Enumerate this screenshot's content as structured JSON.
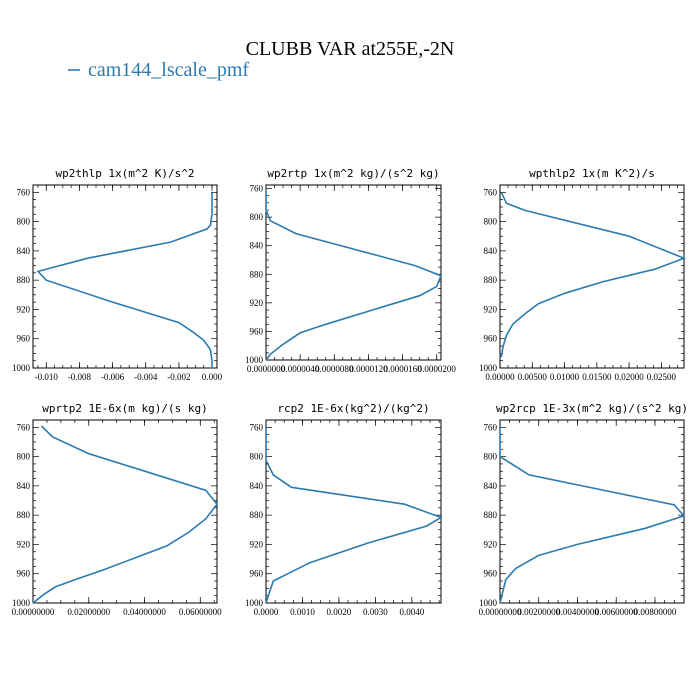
{
  "figure": {
    "title": "CLUBB VAR at255E,-2N",
    "legend_label": "cam144_lscale_pmf",
    "line_color": "#2c7bb0"
  },
  "chart_data": [
    {
      "type": "line",
      "title": "wp2thlp  1x(m^2 K)/s^2",
      "xlim": [
        -0.0108,
        0.0003
      ],
      "xticks": [
        "-0.010",
        "-0.008",
        "-0.006",
        "-0.004",
        "-0.002",
        "0.000"
      ],
      "xtick_values": [
        -0.01,
        -0.008,
        -0.006,
        -0.004,
        -0.002,
        0.0
      ],
      "ylim": [
        1000,
        750
      ],
      "yticks": [
        "760",
        "800",
        "840",
        "880",
        "920",
        "960",
        "1000"
      ],
      "ytick_values": [
        760,
        800,
        840,
        880,
        920,
        960,
        1000
      ],
      "x": [
        0.0,
        0.0,
        -0.0001,
        -0.0003,
        -0.0025,
        -0.0075,
        -0.0105,
        -0.01,
        -0.006,
        -0.002,
        -0.0012,
        -0.0005,
        -0.0001,
        0.0,
        0.0
      ],
      "y": [
        760,
        790,
        805,
        810,
        828,
        850,
        868,
        880,
        910,
        938,
        950,
        962,
        975,
        990,
        1000
      ]
    },
    {
      "type": "line",
      "title": "wp2rtp  1x(m^2 kg)/(s^2 kg)",
      "xlim": [
        0,
        2.05e-05
      ],
      "xticks": [
        "0.0000000",
        "0.0000040",
        "0.0000080",
        "0.0000120",
        "0.0000160",
        "0.0000200"
      ],
      "xtick_values": [
        0,
        4e-06,
        8e-06,
        1.2e-05,
        1.6e-05,
        2e-05
      ],
      "ylim": [
        1000,
        755
      ],
      "yticks": [
        "760",
        "800",
        "840",
        "880",
        "920",
        "960",
        "1000"
      ],
      "ytick_values": [
        760,
        800,
        840,
        880,
        920,
        960,
        1000
      ],
      "x": [
        0,
        0,
        5e-07,
        3.5e-06,
        1.75e-05,
        2.05e-05,
        2e-05,
        1.8e-05,
        1.3e-05,
        7e-06,
        4e-06,
        2e-06,
        5e-07,
        0
      ],
      "y": [
        760,
        790,
        805,
        823,
        868,
        882,
        897,
        910,
        928,
        950,
        962,
        978,
        992,
        1000
      ]
    },
    {
      "type": "line",
      "title": "wpthlp2  1x(m K^2)/s",
      "xlim": [
        0,
        0.0285
      ],
      "xticks": [
        "0.00000",
        "0.00500",
        "0.01000",
        "0.01500",
        "0.02000",
        "0.02500"
      ],
      "xtick_values": [
        0,
        0.005,
        0.01,
        0.015,
        0.02,
        0.025
      ],
      "ylim": [
        1000,
        750
      ],
      "yticks": [
        "760",
        "800",
        "840",
        "880",
        "920",
        "960",
        "1000"
      ],
      "ytick_values": [
        760,
        800,
        840,
        880,
        920,
        960,
        1000
      ],
      "x": [
        0.0002,
        0.001,
        0.004,
        0.02,
        0.0285,
        0.024,
        0.016,
        0.01,
        0.006,
        0.004,
        0.002,
        0.001,
        0.0005,
        0.0002
      ],
      "y": [
        760,
        775,
        785,
        820,
        850,
        865,
        882,
        898,
        912,
        925,
        940,
        955,
        970,
        985
      ]
    },
    {
      "type": "line",
      "title": "wprtp2  1E-6x(m kg)/(s kg)",
      "xlim": [
        0,
        0.066
      ],
      "xticks": [
        "0.00000000",
        "0.02000000",
        "0.04000000",
        "0.06000000"
      ],
      "xtick_values": [
        0,
        0.02,
        0.04,
        0.06
      ],
      "ylim": [
        1000,
        750
      ],
      "yticks": [
        "760",
        "800",
        "840",
        "880",
        "920",
        "960",
        "1000"
      ],
      "ytick_values": [
        760,
        800,
        840,
        880,
        920,
        960,
        1000
      ],
      "x": [
        0.003,
        0.007,
        0.02,
        0.062,
        0.066,
        0.062,
        0.056,
        0.048,
        0.039,
        0.025,
        0.016,
        0.008,
        0.004,
        0.001,
        0.0
      ],
      "y": [
        758,
        773,
        796,
        846,
        865,
        885,
        903,
        922,
        935,
        955,
        967,
        978,
        988,
        997,
        1000
      ]
    },
    {
      "type": "line",
      "title": "rcp2  1E-6x(kg^2)/(kg^2)",
      "xlim": [
        0,
        0.0048
      ],
      "xticks": [
        "0.0000",
        "0.0010",
        "0.0020",
        "0.0030",
        "0.0040"
      ],
      "xtick_values": [
        0,
        0.001,
        0.002,
        0.003,
        0.004
      ],
      "ylim": [
        1000,
        750
      ],
      "yticks": [
        "760",
        "800",
        "840",
        "880",
        "920",
        "960",
        "1000"
      ],
      "ytick_values": [
        760,
        800,
        840,
        880,
        920,
        960,
        1000
      ],
      "x": [
        0,
        0,
        0.0002,
        0.0007,
        0.0038,
        0.0048,
        0.0044,
        0.0028,
        0.0012,
        0.0006,
        0.0002,
        0.0001,
        0
      ],
      "y": [
        760,
        805,
        825,
        842,
        865,
        883,
        895,
        918,
        945,
        960,
        970,
        985,
        1000
      ]
    },
    {
      "type": "line",
      "title": "wp2rcp  1E-3x(m^2 kg)/(s^2 kg)",
      "xlim": [
        0,
        0.0095
      ],
      "xticks": [
        "0.00000000",
        "0.00200000",
        "0.00400000",
        "0.00600000",
        "0.00800000"
      ],
      "xtick_values": [
        0,
        0.002,
        0.004,
        0.006,
        0.008
      ],
      "ylim": [
        1000,
        750
      ],
      "yticks": [
        "760",
        "800",
        "840",
        "880",
        "920",
        "960",
        "1000"
      ],
      "ytick_values": [
        760,
        800,
        840,
        880,
        920,
        960,
        1000
      ],
      "x": [
        0,
        0,
        0.0015,
        0.009,
        0.0095,
        0.0075,
        0.004,
        0.002,
        0.0008,
        0.0003,
        0
      ],
      "y": [
        760,
        800,
        825,
        866,
        881,
        898,
        920,
        935,
        953,
        968,
        1000
      ]
    }
  ]
}
